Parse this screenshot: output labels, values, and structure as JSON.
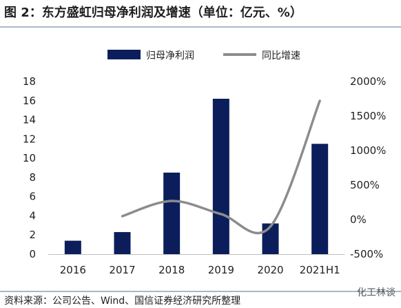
{
  "figure": {
    "title": "图 2：东方盛虹归母净利润及增速（单位：亿元、%）",
    "source": "资料来源：公司公告、Wind、国信证券经济研究所整理",
    "watermark": "化工林谈"
  },
  "colors": {
    "bar": "#0b1e5b",
    "line": "#8c8c8c"
  },
  "chart_data": {
    "type": "bar",
    "categories": [
      "2016",
      "2017",
      "2018",
      "2019",
      "2020",
      "2021H1"
    ],
    "y_left_ticks": [
      "0",
      "2",
      "4",
      "6",
      "8",
      "10",
      "12",
      "14",
      "16",
      "18"
    ],
    "y_left_range": [
      0,
      18
    ],
    "y_right_ticks": [
      "-500%",
      "0%",
      "500%",
      "1000%",
      "1500%",
      "2000%"
    ],
    "y_right_range": [
      -500,
      2000
    ],
    "grid": false,
    "legend_position": "top",
    "series": [
      {
        "name": "归母净利润",
        "kind": "bar",
        "axis": "left",
        "values": [
          1.4,
          2.3,
          8.5,
          16.2,
          3.2,
          11.5
        ]
      },
      {
        "name": "同比增速",
        "kind": "line",
        "axis": "right",
        "smooth": true,
        "values": [
          null,
          50,
          270,
          80,
          -100,
          1720
        ]
      }
    ]
  }
}
